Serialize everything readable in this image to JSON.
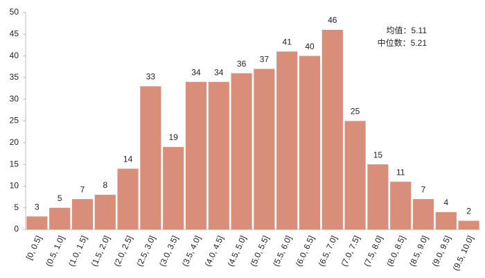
{
  "chart_data": {
    "type": "bar",
    "categories": [
      "[0, 0.5]",
      "(0.5, 1.0]",
      "(1.0, 1.5]",
      "(1.5, 2.0]",
      "(2.0, 2.5]",
      "(2.5, 3.0]",
      "(3.0, 3.5]",
      "(3.5, 4.0]",
      "(4.0, 4.5]",
      "(4.5, 5.0]",
      "(5.0, 5.5]",
      "(5.5, 6.0]",
      "(6.0, 6.5]",
      "(6.5, 7.0]",
      "(7.0, 7.5]",
      "(7.5, 8.0]",
      "(8.0, 8.5]",
      "(8.5, 9.0]",
      "(9.0, 9.5]",
      "(9.5, 10.0]"
    ],
    "values": [
      3,
      5,
      7,
      8,
      14,
      33,
      19,
      34,
      34,
      36,
      37,
      41,
      40,
      46,
      25,
      15,
      11,
      7,
      4,
      2
    ],
    "color": "#d98e79",
    "ylim": [
      0,
      50
    ],
    "yticks": [
      0,
      5,
      10,
      15,
      20,
      25,
      30,
      35,
      40,
      45,
      50
    ],
    "grid": false,
    "annotations": [
      "均值：5.11",
      "中位数：5.21"
    ]
  }
}
